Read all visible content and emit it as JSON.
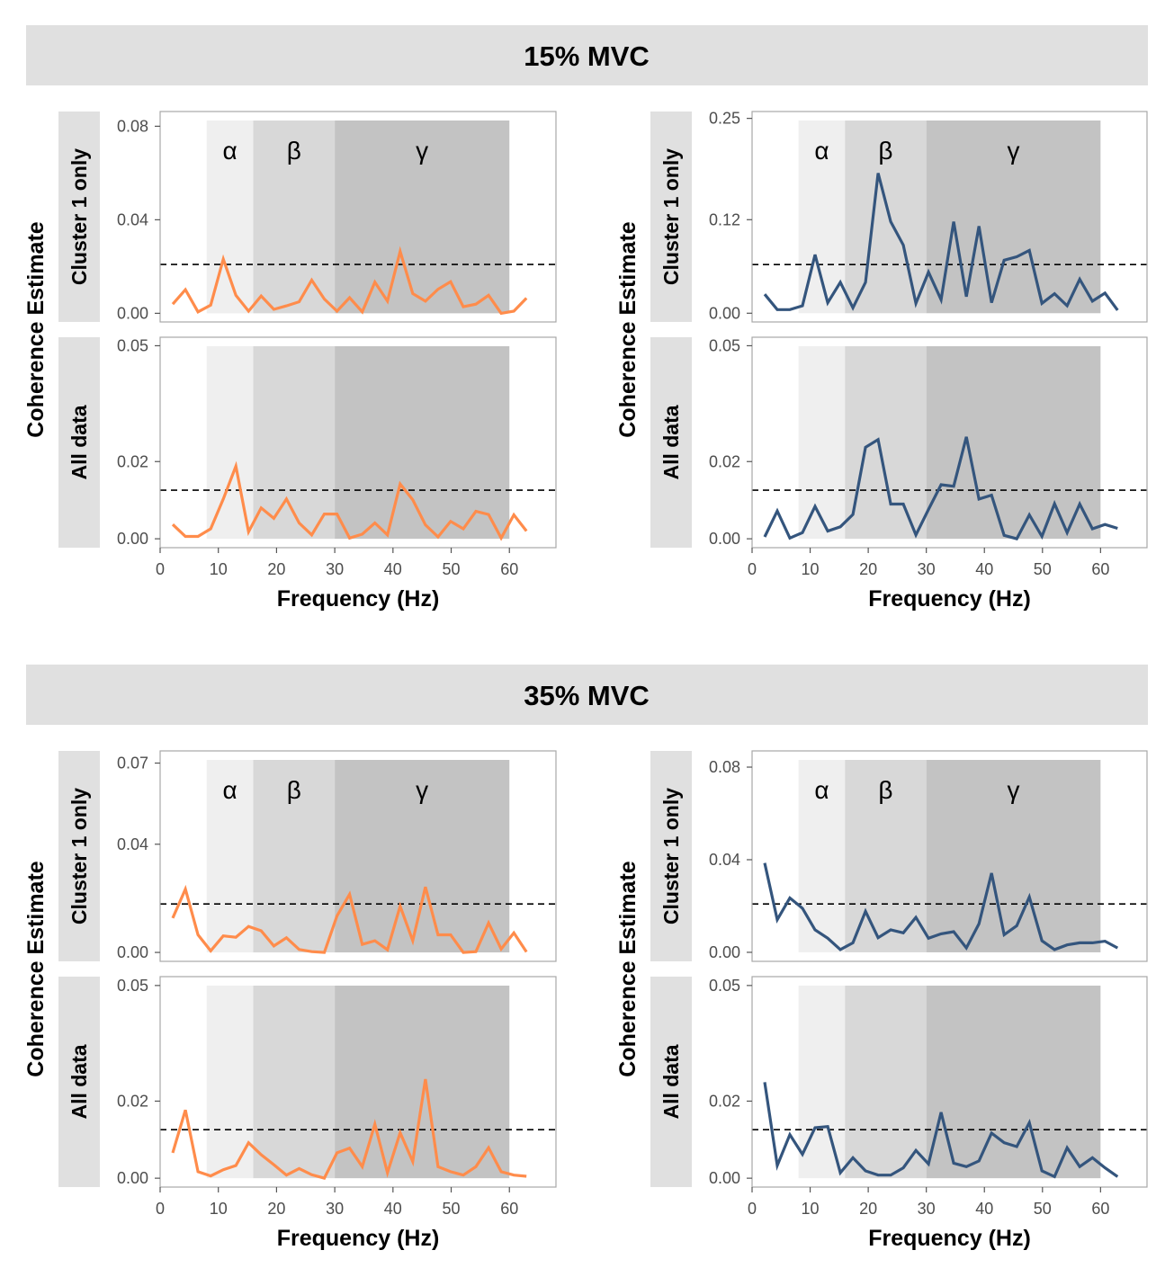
{
  "figure": {
    "ylabel": "Coherence Estimate",
    "xlabel": "Frequency (Hz)",
    "facets": [
      "15% MVC",
      "35% MVC"
    ],
    "rows": [
      "Cluster 1 only",
      "All data"
    ]
  },
  "colors": {
    "orange": "#FF8C4B",
    "blue": "#34557D",
    "alpha_band": "#EFEFEF",
    "beta_band": "#D8D8D8",
    "gamma_band": "#C3C3C3",
    "strip": "#E0E0E0",
    "threshold": "#000000"
  },
  "chart_data": [
    {
      "type": "line",
      "facet": "15% MVC",
      "row": "Cluster 1 only",
      "column": 1,
      "color": "orange",
      "xlim": [
        0,
        68
      ],
      "ylim": [
        -0.0037,
        0.0863
      ],
      "xticks": [
        0,
        10,
        20,
        30,
        40,
        50,
        60
      ],
      "yticks": [
        "0.00",
        "0.04",
        "0.08"
      ],
      "bands": [
        {
          "label": "α",
          "from": 8,
          "to": 16
        },
        {
          "label": "β",
          "from": 16,
          "to": 30
        },
        {
          "label": "γ",
          "from": 30,
          "to": 60
        }
      ],
      "threshold": 0.0209,
      "x": [
        2.17,
        4.34,
        6.51,
        8.68,
        10.85,
        13.02,
        15.19,
        17.36,
        19.53,
        21.7,
        23.87,
        26.04,
        28.21,
        30.38,
        32.55,
        34.72,
        36.89,
        39.06,
        41.23,
        43.4,
        45.57,
        47.74,
        49.91,
        52.08,
        54.25,
        56.42,
        58.59,
        60.76,
        62.93
      ],
      "y": [
        0.0039,
        0.0101,
        0.0006,
        0.0035,
        0.0232,
        0.0077,
        0.0009,
        0.0074,
        0.0017,
        0.0032,
        0.0049,
        0.0142,
        0.0061,
        0.0009,
        0.0067,
        0.0006,
        0.0133,
        0.0052,
        0.0265,
        0.0084,
        0.0052,
        0.0103,
        0.0135,
        0.0028,
        0.0039,
        0.0077,
        0.0,
        0.0009,
        0.0065
      ]
    },
    {
      "type": "line",
      "facet": "15% MVC",
      "row": "All data",
      "column": 1,
      "color": "orange",
      "xlim": [
        0,
        68
      ],
      "ylim": [
        -0.0023,
        0.0522
      ],
      "xticks": [
        0,
        10,
        20,
        30,
        40,
        50,
        60
      ],
      "yticks": [
        "0.00",
        "0.02",
        "0.05"
      ],
      "bands": [
        {
          "label": "α",
          "from": 8,
          "to": 16
        },
        {
          "label": "β",
          "from": 16,
          "to": 30
        },
        {
          "label": "γ",
          "from": 30,
          "to": 60
        }
      ],
      "threshold": 0.0126,
      "x": [
        2.17,
        4.34,
        6.51,
        8.68,
        10.85,
        13.02,
        15.19,
        17.36,
        19.53,
        21.7,
        23.87,
        26.04,
        28.21,
        30.38,
        32.55,
        34.72,
        36.89,
        39.06,
        41.23,
        43.4,
        45.57,
        47.74,
        49.91,
        52.08,
        54.25,
        56.42,
        58.59,
        60.76,
        62.93
      ],
      "y": [
        0.0037,
        0.0006,
        0.0006,
        0.0026,
        0.0103,
        0.0188,
        0.0018,
        0.008,
        0.0053,
        0.0103,
        0.0041,
        0.001,
        0.0064,
        0.0064,
        0.0002,
        0.0012,
        0.0041,
        0.001,
        0.0142,
        0.0101,
        0.0036,
        0.0005,
        0.0045,
        0.0026,
        0.0071,
        0.0063,
        0.0002,
        0.0062,
        0.002
      ]
    },
    {
      "type": "line",
      "facet": "15% MVC",
      "row": "Cluster 1 only",
      "column": 2,
      "color": "blue",
      "xlim": [
        0,
        68
      ],
      "ylim": [
        -0.0112,
        0.2588
      ],
      "xticks": [
        0,
        10,
        20,
        30,
        40,
        50,
        60
      ],
      "yticks": [
        "0.00",
        "0.12",
        "0.25"
      ],
      "bands": [
        {
          "label": "α",
          "from": 8,
          "to": 16
        },
        {
          "label": "β",
          "from": 16,
          "to": 30
        },
        {
          "label": "γ",
          "from": 30,
          "to": 60
        }
      ],
      "threshold": 0.0624,
      "x": [
        2.17,
        4.34,
        6.51,
        8.68,
        10.85,
        13.02,
        15.19,
        17.36,
        19.53,
        21.7,
        23.87,
        26.04,
        28.21,
        30.38,
        32.55,
        34.72,
        36.89,
        39.06,
        41.23,
        43.4,
        45.57,
        47.74,
        49.91,
        52.08,
        54.25,
        56.42,
        58.59,
        60.76,
        62.93
      ],
      "y": [
        0.0243,
        0.0046,
        0.0046,
        0.0096,
        0.0751,
        0.0135,
        0.0397,
        0.0069,
        0.0397,
        0.1798,
        0.1174,
        0.0874,
        0.0127,
        0.0527,
        0.0173,
        0.1174,
        0.0212,
        0.1117,
        0.0135,
        0.0681,
        0.0724,
        0.0805,
        0.0127,
        0.025,
        0.0096,
        0.0435,
        0.0154,
        0.0258,
        0.0039
      ]
    },
    {
      "type": "line",
      "facet": "15% MVC",
      "row": "All data",
      "column": 2,
      "color": "blue",
      "xlim": [
        0,
        68
      ],
      "ylim": [
        -0.0023,
        0.0522
      ],
      "xticks": [
        0,
        10,
        20,
        30,
        40,
        50,
        60
      ],
      "yticks": [
        "0.00",
        "0.02",
        "0.05"
      ],
      "bands": [
        {
          "label": "α",
          "from": 8,
          "to": 16
        },
        {
          "label": "β",
          "from": 16,
          "to": 30
        },
        {
          "label": "γ",
          "from": 30,
          "to": 60
        }
      ],
      "threshold": 0.0126,
      "x": [
        2.17,
        4.34,
        6.51,
        8.68,
        10.85,
        13.02,
        15.19,
        17.36,
        19.53,
        21.7,
        23.87,
        26.04,
        28.21,
        30.38,
        32.55,
        34.72,
        36.89,
        39.06,
        41.23,
        43.4,
        45.57,
        47.74,
        49.91,
        52.08,
        54.25,
        56.42,
        58.59,
        60.76,
        62.93
      ],
      "y": [
        0.0005,
        0.0072,
        0.0002,
        0.0016,
        0.0084,
        0.002,
        0.0031,
        0.0063,
        0.0237,
        0.0257,
        0.009,
        0.009,
        0.001,
        0.0076,
        0.014,
        0.0136,
        0.0264,
        0.0103,
        0.0113,
        0.0009,
        0.0,
        0.0062,
        0.0006,
        0.0091,
        0.0016,
        0.009,
        0.0026,
        0.0037,
        0.0027
      ]
    },
    {
      "type": "line",
      "facet": "35% MVC",
      "row": "Cluster 1 only",
      "column": 1,
      "color": "orange",
      "xlim": [
        0,
        68
      ],
      "ylim": [
        -0.0033,
        0.0745
      ],
      "xticks": [
        0,
        10,
        20,
        30,
        40,
        50,
        60
      ],
      "yticks": [
        "0.00",
        "0.04",
        "0.07"
      ],
      "bands": [
        {
          "label": "α",
          "from": 8,
          "to": 16
        },
        {
          "label": "β",
          "from": 16,
          "to": 30
        },
        {
          "label": "γ",
          "from": 30,
          "to": 60
        }
      ],
      "threshold": 0.0179,
      "x": [
        2.17,
        4.34,
        6.51,
        8.68,
        10.85,
        13.02,
        15.19,
        17.36,
        19.53,
        21.7,
        23.87,
        26.04,
        28.21,
        30.38,
        32.55,
        34.72,
        36.89,
        39.06,
        41.23,
        43.4,
        45.57,
        47.74,
        49.91,
        52.08,
        54.25,
        56.42,
        58.59,
        60.76,
        62.93
      ],
      "y": [
        0.0127,
        0.0234,
        0.0065,
        0.0006,
        0.0061,
        0.0056,
        0.0096,
        0.008,
        0.0024,
        0.0054,
        0.0011,
        0.0003,
        0.0,
        0.0135,
        0.0215,
        0.003,
        0.0043,
        0.001,
        0.0171,
        0.0043,
        0.0242,
        0.0065,
        0.0065,
        0.0,
        0.0003,
        0.0109,
        0.0013,
        0.0072,
        0.0002
      ]
    },
    {
      "type": "line",
      "facet": "35% MVC",
      "row": "All data",
      "column": 1,
      "color": "orange",
      "xlim": [
        0,
        68
      ],
      "ylim": [
        -0.0023,
        0.0523
      ],
      "xticks": [
        0,
        10,
        20,
        30,
        40,
        50,
        60
      ],
      "yticks": [
        "0.00",
        "0.02",
        "0.05"
      ],
      "bands": [
        {
          "label": "α",
          "from": 8,
          "to": 16
        },
        {
          "label": "β",
          "from": 16,
          "to": 30
        },
        {
          "label": "γ",
          "from": 30,
          "to": 60
        }
      ],
      "threshold": 0.0126,
      "x": [
        2.17,
        4.34,
        6.51,
        8.68,
        10.85,
        13.02,
        15.19,
        17.36,
        19.53,
        21.7,
        23.87,
        26.04,
        28.21,
        30.38,
        32.55,
        34.72,
        36.89,
        39.06,
        41.23,
        43.4,
        45.57,
        47.74,
        49.91,
        52.08,
        54.25,
        56.42,
        58.59,
        60.76,
        62.93
      ],
      "y": [
        0.0066,
        0.0177,
        0.0017,
        0.0006,
        0.0022,
        0.0033,
        0.0092,
        0.0061,
        0.0035,
        0.0008,
        0.0025,
        0.0009,
        0.0,
        0.0066,
        0.0078,
        0.003,
        0.014,
        0.0014,
        0.0118,
        0.0043,
        0.0257,
        0.003,
        0.0017,
        0.0008,
        0.003,
        0.0079,
        0.0017,
        0.0008,
        0.0005
      ]
    },
    {
      "type": "line",
      "facet": "35% MVC",
      "row": "Cluster 1 only",
      "column": 2,
      "color": "blue",
      "xlim": [
        0,
        68
      ],
      "ylim": [
        -0.0039,
        0.087
      ],
      "xticks": [
        0,
        10,
        20,
        30,
        40,
        50,
        60
      ],
      "yticks": [
        "0.00",
        "0.04",
        "0.08"
      ],
      "bands": [
        {
          "label": "α",
          "from": 8,
          "to": 16
        },
        {
          "label": "β",
          "from": 16,
          "to": 30
        },
        {
          "label": "γ",
          "from": 30,
          "to": 60
        }
      ],
      "threshold": 0.0209,
      "x": [
        2.17,
        4.34,
        6.51,
        8.68,
        10.85,
        13.02,
        15.19,
        17.36,
        19.53,
        21.7,
        23.87,
        26.04,
        28.21,
        30.38,
        32.55,
        34.72,
        36.89,
        39.06,
        41.23,
        43.4,
        45.57,
        47.74,
        49.91,
        52.08,
        54.25,
        56.42,
        58.59,
        60.76,
        62.93
      ],
      "y": [
        0.0386,
        0.0141,
        0.0235,
        0.019,
        0.0097,
        0.0061,
        0.0012,
        0.0041,
        0.0177,
        0.0063,
        0.0097,
        0.0084,
        0.0151,
        0.0061,
        0.008,
        0.0089,
        0.0019,
        0.0123,
        0.0342,
        0.0076,
        0.0115,
        0.0239,
        0.005,
        0.0012,
        0.0032,
        0.0041,
        0.0041,
        0.0048,
        0.0019
      ]
    },
    {
      "type": "line",
      "facet": "35% MVC",
      "row": "All data",
      "column": 2,
      "color": "blue",
      "xlim": [
        0,
        68
      ],
      "ylim": [
        -0.0023,
        0.0523
      ],
      "xticks": [
        0,
        10,
        20,
        30,
        40,
        50,
        60
      ],
      "yticks": [
        "0.00",
        "0.02",
        "0.05"
      ],
      "bands": [
        {
          "label": "α",
          "from": 8,
          "to": 16
        },
        {
          "label": "β",
          "from": 16,
          "to": 30
        },
        {
          "label": "γ",
          "from": 30,
          "to": 60
        }
      ],
      "threshold": 0.0126,
      "x": [
        2.17,
        4.34,
        6.51,
        8.68,
        10.85,
        13.02,
        15.19,
        17.36,
        19.53,
        21.7,
        23.87,
        26.04,
        28.21,
        30.38,
        32.55,
        34.72,
        36.89,
        39.06,
        41.23,
        43.4,
        45.57,
        47.74,
        49.91,
        52.08,
        54.25,
        56.42,
        58.59,
        60.76,
        62.93
      ],
      "y": [
        0.0249,
        0.0033,
        0.0113,
        0.0062,
        0.0131,
        0.0134,
        0.0014,
        0.0053,
        0.0019,
        0.0008,
        0.0008,
        0.0027,
        0.0072,
        0.0037,
        0.0171,
        0.0039,
        0.003,
        0.0045,
        0.0117,
        0.0092,
        0.0082,
        0.0144,
        0.0019,
        0.0004,
        0.0079,
        0.003,
        0.0053,
        0.0027,
        0.0004
      ]
    }
  ]
}
